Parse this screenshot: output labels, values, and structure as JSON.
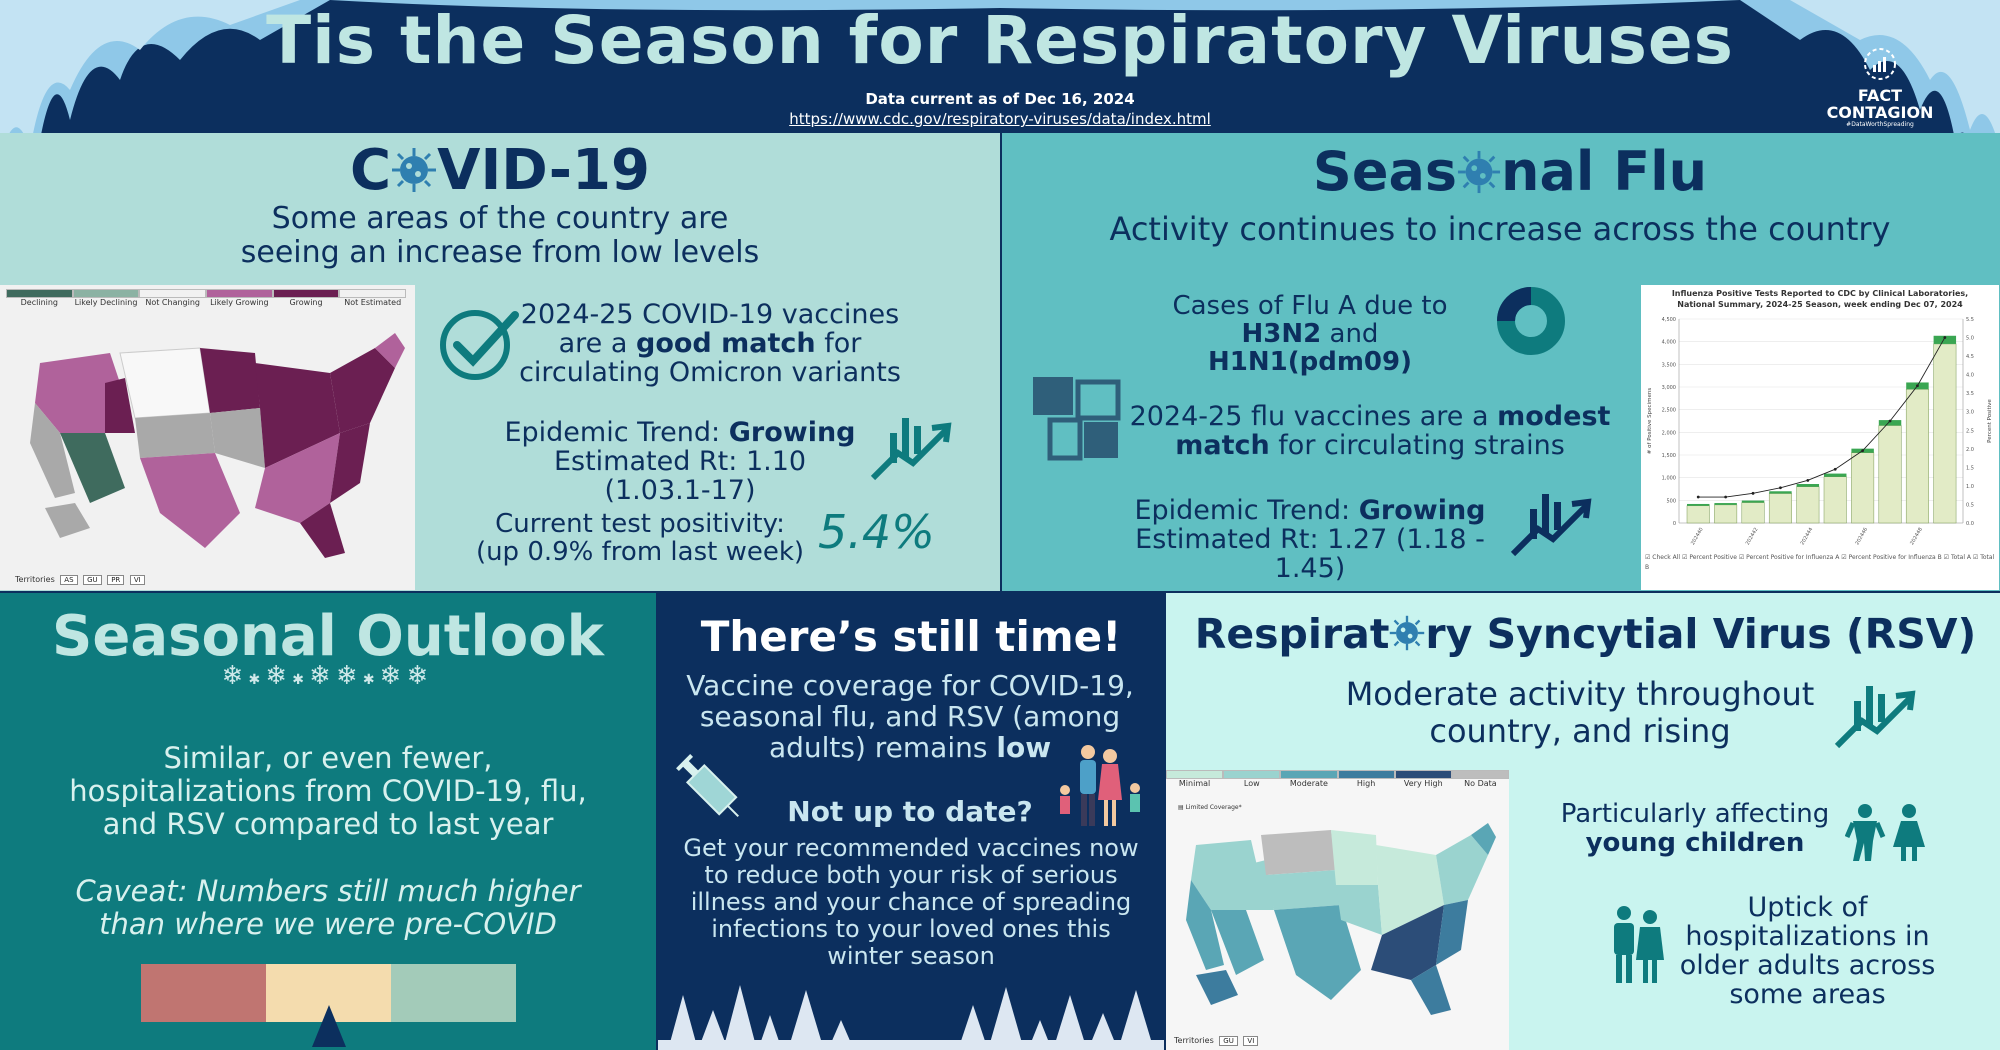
{
  "header": {
    "title": "Tis the Season for Respiratory Viruses",
    "data_current": "Data current as of Dec 16, 2024",
    "source_url": "https://www.cdc.gov/respiratory-viruses/data/index.html",
    "logo_line1": "FACT",
    "logo_line2": "CONTAGION",
    "logo_tagline": "#DataWorthSpreading"
  },
  "covid": {
    "heading_pre": "C",
    "heading_post": "VID-19",
    "subheading_line1": "Some areas of the country are",
    "subheading_line2": "seeing an increase from low levels",
    "map_legend": [
      "Declining",
      "Likely Declining",
      "Not Changing",
      "Likely Growing",
      "Growing",
      "Not Estimated"
    ],
    "map_legend_colors": [
      "#3f6b5e",
      "#8bb2a3",
      "#f1f1f1",
      "#b0629b",
      "#6b1f52",
      "#f1f1f1"
    ],
    "territories_label": "Territories",
    "territories": [
      "AS",
      "GU",
      "PR",
      "VI"
    ],
    "vaccine_line1": "2024-25 COVID-19 vaccines",
    "vaccine_line2_pre": "are a ",
    "vaccine_line2_bold": "good match",
    "vaccine_line2_post": " for",
    "vaccine_line3": "circulating Omicron variants",
    "trend_label": "Epidemic Trend: ",
    "trend_value": "Growing",
    "rt_line": "Estimated Rt: 1.10 (1.03.1-17)",
    "positivity_line1": "Current test positivity:",
    "positivity_line2": "(up 0.9% from last week)",
    "positivity_value": "5.4%"
  },
  "flu": {
    "heading_pre": "Seas",
    "heading_post": "nal Flu",
    "subheading": "Activity continues to increase across the country",
    "cases_line1": "Cases of Flu A due to",
    "cases_line2_b1": "H3N2",
    "cases_line2_mid": " and ",
    "cases_line2_b2": "H1N1(pdm09)",
    "vaccine_line1_pre": "2024-25 flu vaccines are a ",
    "vaccine_line1_bold": "modest",
    "vaccine_line2_bold": "match",
    "vaccine_line2_post": " for circulating strains",
    "trend_label": "Epidemic Trend: ",
    "trend_value": "Growing",
    "rt_line": "Estimated Rt: 1.27 (1.18 - 1.45)",
    "chart_title_line1": "Influenza Positive Tests Reported to CDC by Clinical Laboratories,",
    "chart_title_line2": "National Summary, 2024-25 Season, week ending Dec 07, 2024",
    "chart_ylabel": "# of Positive Specimens",
    "chart_y2label": "Percent Positive",
    "chart_legend": [
      "Check All",
      "Percent Positive",
      "Percent Positive for Influenza A",
      "Percent Positive for Influenza B",
      "Total A",
      "Total B"
    ]
  },
  "chart_data": {
    "type": "bar",
    "title": "Influenza Positive Tests Reported to CDC by Clinical Laboratories, National Summary, 2024-25 Season, week ending Dec 07, 2024",
    "xlabel": "",
    "ylabel": "# of Positive Specimens",
    "y2label": "Percent Positive",
    "x_tick_labels": [
      "202440",
      "202442",
      "202444",
      "202446",
      "202448"
    ],
    "ylim": [
      0,
      4500
    ],
    "y_ticks": [
      0,
      500,
      1000,
      1500,
      2000,
      2500,
      3000,
      3500,
      4000,
      4500
    ],
    "y2lim": [
      0,
      5.5
    ],
    "y2_ticks": [
      0,
      0.5,
      1,
      1.5,
      2,
      2.5,
      3,
      3.5,
      4,
      4.5,
      5,
      5.5
    ],
    "series": [
      {
        "name": "Total A",
        "values": [
          380,
          400,
          450,
          650,
          800,
          1020,
          1550,
          2150,
          2950,
          3950
        ]
      },
      {
        "name": "Total B",
        "values": [
          40,
          40,
          45,
          50,
          60,
          70,
          90,
          120,
          150,
          180
        ]
      }
    ],
    "lines": [
      {
        "name": "Percent Positive",
        "values": [
          0.7,
          0.7,
          0.8,
          0.95,
          1.15,
          1.45,
          1.95,
          2.75,
          3.7,
          5.0
        ]
      }
    ],
    "grid": true,
    "legend": "bottom"
  },
  "outlook": {
    "heading": "Seasonal Outlook",
    "body_line1": "Similar, or even fewer,",
    "body_line2": "hospitalizations from COVID-19, flu,",
    "body_line3": "and RSV compared to last year",
    "caveat_line1": "Caveat: Numbers still much higher",
    "caveat_line2": "than where we were pre-COVID",
    "scale_colors": [
      "#c07571",
      "#f4dcae",
      "#a3cbb9"
    ],
    "scale_marker_index": 1
  },
  "time": {
    "heading": "There’s still time!",
    "coverage_line1": "Vaccine coverage for COVID-19,",
    "coverage_line2": "seasonal flu, and RSV (among",
    "coverage_line3_pre": "adults) remains ",
    "coverage_line3_bold": "low",
    "not_up_to_date": "Not up to date?",
    "body_line1": "Get your recommended vaccines now",
    "body_line2": "to reduce both your risk of serious",
    "body_line3": "illness and your chance of spreading",
    "body_line4": "infections to your loved ones this",
    "body_line5": "winter season"
  },
  "rsv": {
    "heading_pre": "Respirat",
    "heading_post": "ry Syncytial Virus (RSV)",
    "sub_line1": "Moderate activity throughout",
    "sub_line2": "country, and rising",
    "children_line1": "Particularly affecting",
    "children_line2": "young children",
    "adults_line1": "Uptick of",
    "adults_line2": "hospitalizations in",
    "adults_line3": "older adults across",
    "adults_line4": "some areas",
    "map_legend": [
      "Minimal",
      "Low",
      "Moderate",
      "High",
      "Very High",
      "No Data"
    ],
    "map_legend_colors": [
      "#c6eadb",
      "#9ad3cf",
      "#5aa6b5",
      "#3d7c9e",
      "#2c4d78",
      "#bdbdbd"
    ],
    "limited_coverage": "Limited Coverage*",
    "territories_label": "Territories",
    "territories": [
      "GU",
      "VI"
    ]
  }
}
